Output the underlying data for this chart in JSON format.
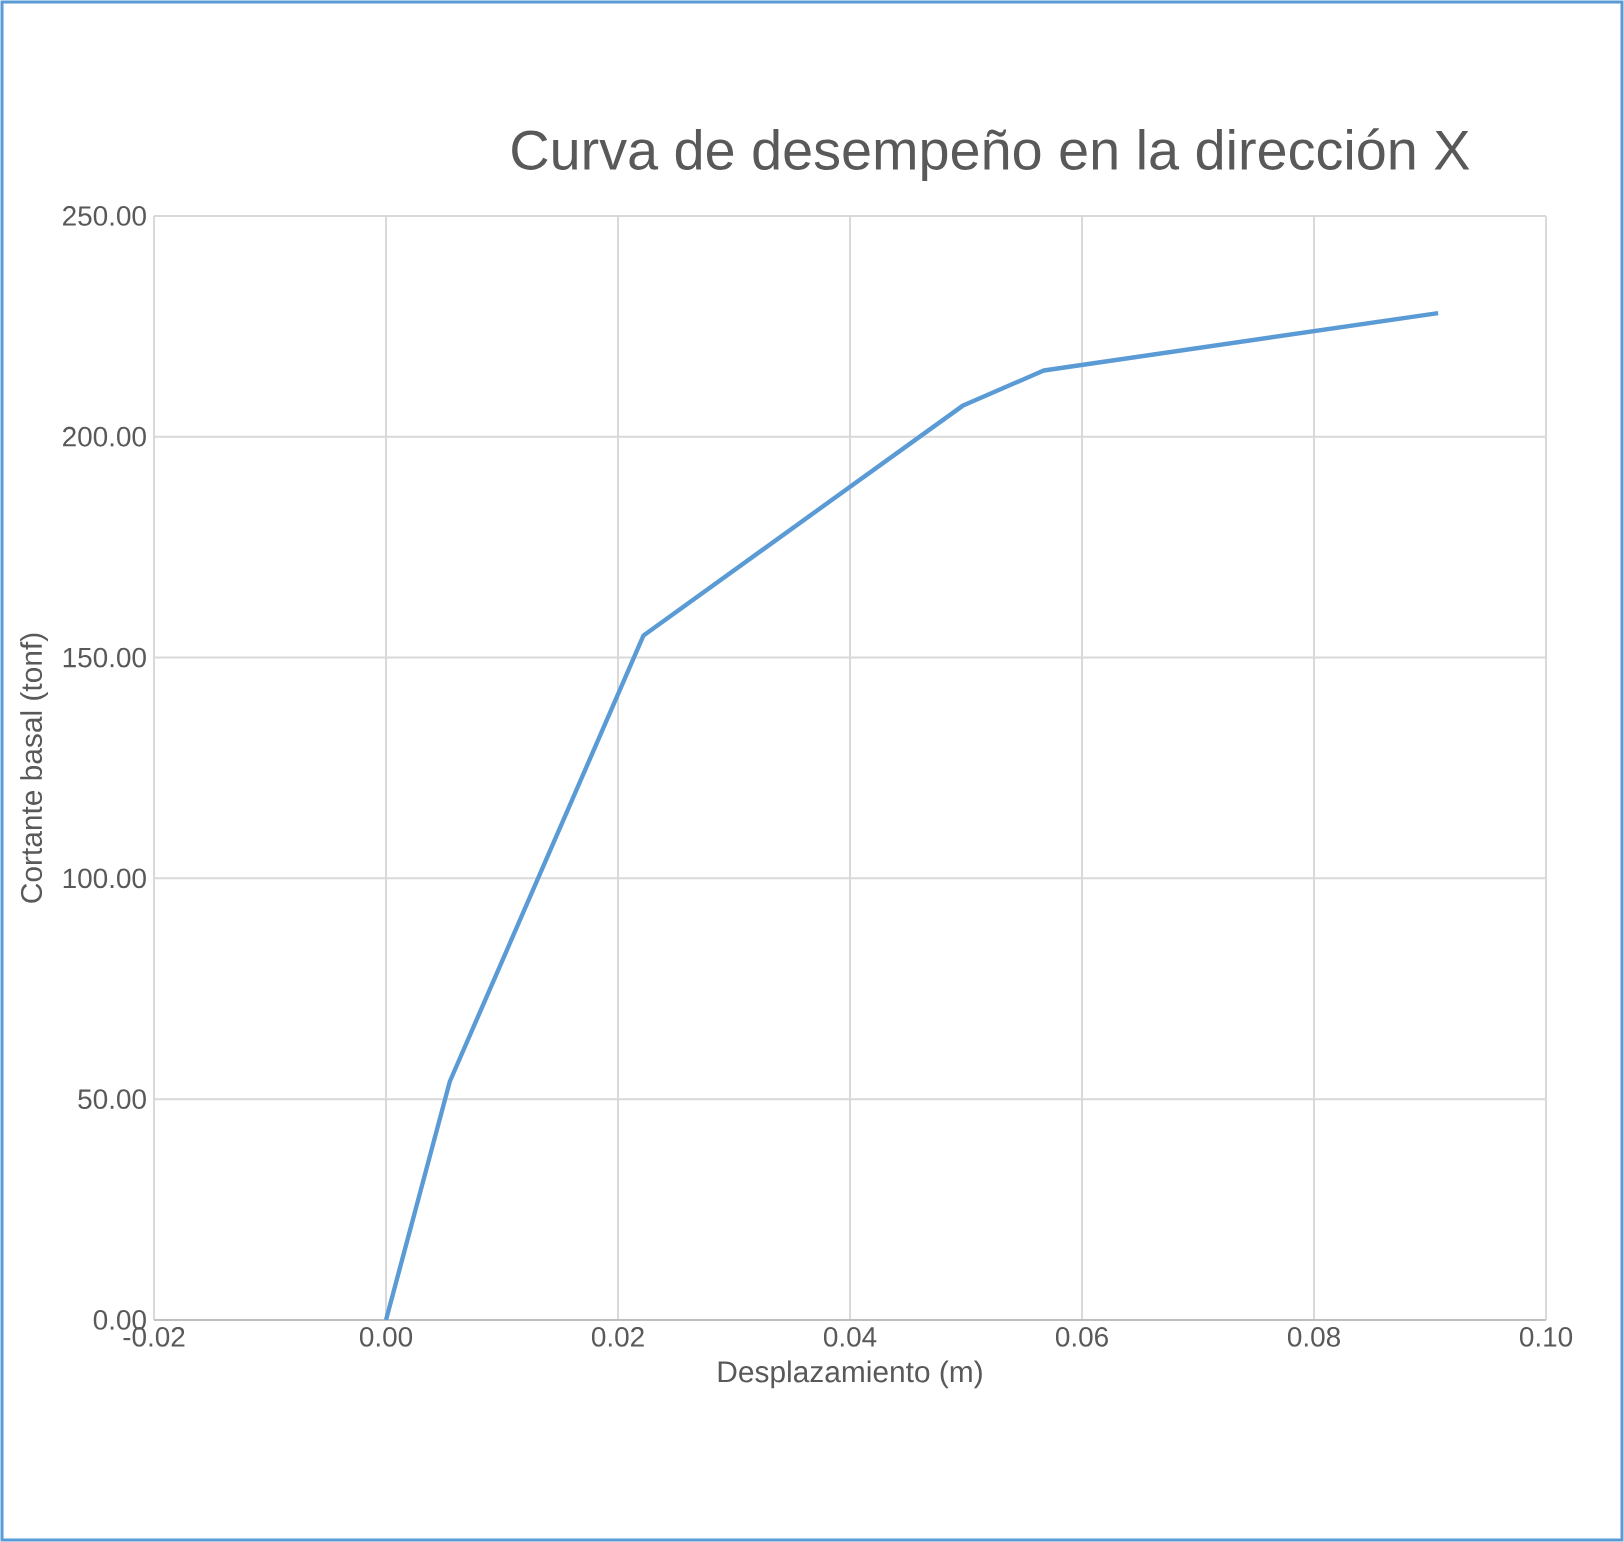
{
  "chart_data": {
    "type": "line",
    "title": "Curva de desempeño en la dirección X",
    "xlabel": "Desplazamiento (m)",
    "ylabel": "Cortante basal (tonf)",
    "x": [
      0,
      0.0055,
      0.0222,
      0.0497,
      0.0567,
      0.0907
    ],
    "series": [
      {
        "color": "#5b9bd5",
        "values": [
          0,
          54,
          155,
          207,
          215,
          228
        ]
      }
    ],
    "xlim": [
      -0.02,
      0.1
    ],
    "xticks": [
      {
        "value": -0.02,
        "label": "-0.02"
      },
      {
        "value": 0,
        "label": "0.00"
      },
      {
        "value": 0.02,
        "label": "0.02"
      },
      {
        "value": 0.04,
        "label": "0.04"
      },
      {
        "value": 0.06,
        "label": "0.06"
      },
      {
        "value": 0.08,
        "label": "0.08"
      },
      {
        "value": 0.1,
        "label": "0.10"
      }
    ],
    "ylim": [
      0,
      250
    ],
    "yticks": [
      {
        "value": 0,
        "label": "0.00"
      },
      {
        "value": 50,
        "label": "50.00"
      },
      {
        "value": 100,
        "label": "100.00"
      },
      {
        "value": 150,
        "label": "150.00"
      },
      {
        "value": 200,
        "label": "200.00"
      },
      {
        "value": 250,
        "label": "250.00"
      }
    ],
    "grid": true,
    "marker": "none",
    "line_style": "solid"
  }
}
